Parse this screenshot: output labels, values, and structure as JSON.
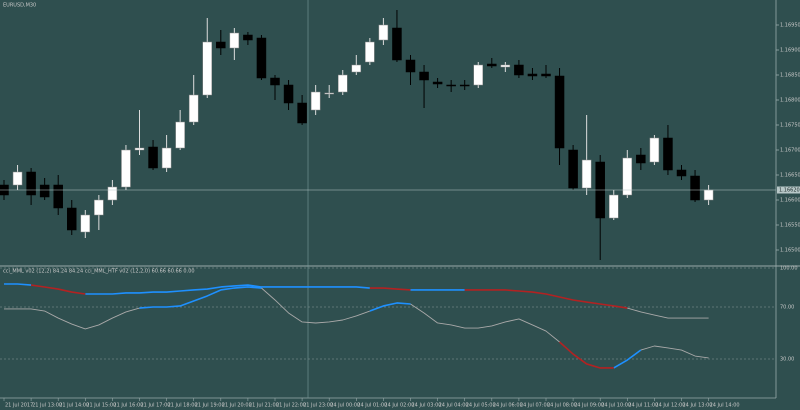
{
  "chart_data": [
    {
      "type": "candlestick",
      "title": "EURUSD,M30",
      "candles": {
        "open": [
          1.1663,
          1.1663,
          1.16656,
          1.1663,
          1.1663,
          1.16584,
          1.16536,
          1.1657,
          1.166,
          1.16626,
          1.167,
          1.16706,
          1.16664,
          1.16704,
          1.16756,
          1.1681,
          1.16916,
          1.16904,
          1.1693,
          1.16924,
          1.16844,
          1.1683,
          1.16794,
          1.1678,
          1.16812,
          1.16816,
          1.16856,
          1.16876,
          1.1692,
          1.16944,
          1.1688,
          1.16856,
          1.16836,
          1.1683,
          1.1683,
          1.1683,
          1.16872,
          1.16866,
          1.1687,
          1.16852,
          1.16852,
          1.16848,
          1.167,
          1.16624,
          1.16676,
          1.16564,
          1.1661,
          1.1669,
          1.16676,
          1.16724,
          1.1666,
          1.16648,
          1.166
        ],
        "high": [
          1.1664,
          1.1667,
          1.16664,
          1.16644,
          1.1665,
          1.166,
          1.1658,
          1.1661,
          1.1664,
          1.1671,
          1.1678,
          1.1672,
          1.1673,
          1.1678,
          1.1685,
          1.16964,
          1.1694,
          1.16944,
          1.16936,
          1.1693,
          1.1685,
          1.1684,
          1.1681,
          1.1683,
          1.1683,
          1.1686,
          1.1689,
          1.16924,
          1.16964,
          1.1698,
          1.1689,
          1.1687,
          1.16844,
          1.1684,
          1.1684,
          1.16876,
          1.16884,
          1.16876,
          1.1688,
          1.16864,
          1.1687,
          1.16864,
          1.1671,
          1.1677,
          1.1669,
          1.1662,
          1.167,
          1.16704,
          1.1673,
          1.1675,
          1.1667,
          1.1666,
          1.1663
        ],
        "low": [
          1.166,
          1.1662,
          1.1659,
          1.166,
          1.1657,
          1.1653,
          1.16524,
          1.1654,
          1.1659,
          1.1662,
          1.1669,
          1.1666,
          1.16656,
          1.167,
          1.1675,
          1.16804,
          1.1689,
          1.1688,
          1.1691,
          1.1684,
          1.168,
          1.1678,
          1.1675,
          1.1677,
          1.16804,
          1.1681,
          1.1685,
          1.1687,
          1.1691,
          1.16876,
          1.1683,
          1.16784,
          1.16824,
          1.16816,
          1.1682,
          1.16824,
          1.16864,
          1.16856,
          1.16844,
          1.1684,
          1.16844,
          1.1667,
          1.1662,
          1.1661,
          1.1648,
          1.1656,
          1.16604,
          1.1666,
          1.1667,
          1.1665,
          1.1664,
          1.16596,
          1.1659
        ],
        "close": [
          1.1661,
          1.16656,
          1.1661,
          1.16606,
          1.16584,
          1.1654,
          1.1657,
          1.166,
          1.16626,
          1.167,
          1.16704,
          1.16664,
          1.16704,
          1.16756,
          1.1681,
          1.16916,
          1.16904,
          1.16934,
          1.1692,
          1.16844,
          1.1683,
          1.16794,
          1.16754,
          1.16816,
          1.16814,
          1.1685,
          1.1687,
          1.16916,
          1.1695,
          1.1688,
          1.16856,
          1.1684,
          1.16832,
          1.16828,
          1.16828,
          1.1687,
          1.16868,
          1.1687,
          1.1685,
          1.16848,
          1.16848,
          1.16704,
          1.16624,
          1.1668,
          1.16564,
          1.1661,
          1.16684,
          1.16674,
          1.16724,
          1.1666,
          1.16648,
          1.166,
          1.1662
        ]
      },
      "bull_color": "#ffffff",
      "bear_color": "#000000",
      "ylim": [
        1.1647,
        1.17
      ],
      "yticks": [
        {
          "value": 1.1695,
          "label": "1.16950"
        },
        {
          "value": 1.169,
          "label": "1.16900"
        },
        {
          "value": 1.1685,
          "label": "1.16850"
        },
        {
          "value": 1.168,
          "label": "1.16800"
        },
        {
          "value": 1.1675,
          "label": "1.16750"
        },
        {
          "value": 1.167,
          "label": "1.16700"
        },
        {
          "value": 1.1665,
          "label": "1.16650"
        },
        {
          "value": 1.166,
          "label": "1.16600"
        },
        {
          "value": 1.1655,
          "label": "1.16550"
        },
        {
          "value": 1.165,
          "label": "1.16500"
        }
      ],
      "current_price": {
        "value": 1.1662,
        "label": "1.16620"
      },
      "x_labels": [
        "21 Jul 2017",
        "21 Jul 13:00",
        "21 Jul 14:00",
        "21 Jul 15:00",
        "21 Jul 16:00",
        "21 Jul 17:00",
        "21 Jul 18:00",
        "21 Jul 19:00",
        "21 Jul 20:00",
        "21 Jul 21:00",
        "21 Jul 22:00",
        "21 Jul 23:00",
        "24 Jul 00:00",
        "24 Jul 01:00",
        "24 Jul 02:00",
        "24 Jul 03:00",
        "24 Jul 04:00",
        "24 Jul 05:00",
        "24 Jul 06:00",
        "24 Jul 07:00",
        "24 Jul 08:00",
        "24 Jul 09:00",
        "24 Jul 10:00",
        "24 Jul 11:00",
        "24 Jul 12:00",
        "24 Jul 13:00",
        "24 Jul 14:00"
      ]
    },
    {
      "type": "line",
      "title": "cci_MML v02 (12,2) 84.24 84.24 cci_MML_HTF v02 (12,2,0) 60.66 60.66 0.00",
      "ylim": [
        0,
        100
      ],
      "yticks": [
        {
          "value": 100,
          "label": "100.00"
        },
        {
          "value": 70,
          "label": "70.00"
        },
        {
          "value": 30,
          "label": "30.00"
        }
      ],
      "series": [
        {
          "color": "#1e90ff",
          "values": [
            87.7,
            87.7,
            86.9,
            null,
            null,
            null,
            80.0,
            80.0,
            80.0,
            80.8,
            80.8,
            81.5,
            81.5,
            82.3,
            83.1,
            83.8,
            85.4,
            86.2,
            86.9,
            85.4,
            85.4,
            85.4,
            85.4,
            85.4,
            85.4,
            85.4,
            85.4,
            84.6,
            null,
            null,
            83.1,
            83.1,
            83.1,
            83.1,
            83.1,
            null,
            null,
            null,
            null,
            null,
            null,
            null,
            null,
            null,
            null,
            null,
            null,
            null,
            null,
            null,
            null,
            null,
            null
          ]
        },
        {
          "color": "#b22222",
          "values": [
            null,
            null,
            86.9,
            85.4,
            83.8,
            81.5,
            80.0,
            null,
            null,
            null,
            null,
            null,
            null,
            null,
            null,
            null,
            null,
            null,
            null,
            null,
            null,
            null,
            null,
            null,
            null,
            null,
            null,
            84.6,
            84.6,
            83.8,
            83.1,
            null,
            null,
            null,
            83.1,
            83.1,
            83.1,
            83.1,
            82.3,
            81.5,
            80.0,
            77.7,
            75.4,
            73.8,
            72.3,
            70.8,
            69.2,
            null,
            null,
            null,
            null,
            null,
            null
          ]
        },
        {
          "color": "#a9a9a9",
          "values": [
            null,
            null,
            null,
            null,
            null,
            null,
            null,
            null,
            null,
            null,
            null,
            null,
            null,
            null,
            null,
            null,
            null,
            null,
            null,
            null,
            null,
            null,
            null,
            null,
            null,
            null,
            null,
            null,
            null,
            null,
            null,
            null,
            null,
            null,
            null,
            null,
            null,
            null,
            null,
            null,
            null,
            null,
            null,
            null,
            null,
            null,
            69.2,
            66.2,
            63.8,
            61.5,
            61.5,
            61.5,
            61.5
          ]
        },
        {
          "color": "#a9a9a9",
          "values": [
            68.5,
            68.5,
            68.5,
            66.9,
            61.5,
            56.9,
            53.1,
            56.2,
            61.5,
            66.2,
            69.2,
            null,
            null,
            null,
            null,
            null,
            null,
            null,
            null,
            84.6,
            75.4,
            65.4,
            58.5,
            57.7,
            58.5,
            60.0,
            63.1,
            66.9,
            null,
            null,
            72.3,
            65.4,
            57.7,
            56.2,
            53.8,
            53.8,
            55.4,
            58.5,
            60.8,
            56.2,
            51.5,
            43.1,
            null,
            null,
            null,
            null,
            null,
            36.9,
            40.0,
            38.5,
            36.9,
            32.3,
            30.8
          ]
        },
        {
          "color": "#1e90ff",
          "values": [
            null,
            null,
            null,
            null,
            null,
            null,
            null,
            null,
            null,
            null,
            69.2,
            70.0,
            70.0,
            70.8,
            74.6,
            78.5,
            83.1,
            84.6,
            85.4,
            84.6,
            null,
            null,
            null,
            null,
            null,
            null,
            null,
            66.9,
            70.8,
            73.1,
            72.3,
            null,
            null,
            null,
            null,
            null,
            null,
            null,
            null,
            null,
            null,
            null,
            null,
            null,
            null,
            23.1,
            29.2,
            36.9,
            null,
            null,
            null,
            null,
            null
          ]
        },
        {
          "color": "#b22222",
          "values": [
            null,
            null,
            null,
            null,
            null,
            null,
            null,
            null,
            null,
            null,
            null,
            null,
            null,
            null,
            null,
            null,
            null,
            null,
            null,
            null,
            null,
            null,
            null,
            null,
            null,
            null,
            null,
            null,
            null,
            null,
            null,
            null,
            null,
            null,
            null,
            null,
            null,
            null,
            null,
            null,
            null,
            43.1,
            33.8,
            26.2,
            23.1,
            23.1,
            null,
            null,
            null,
            null,
            null,
            null,
            null
          ]
        }
      ]
    }
  ]
}
